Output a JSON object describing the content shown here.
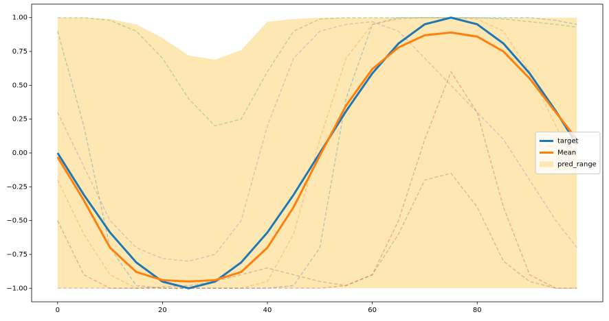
{
  "chart_data": {
    "type": "line",
    "x": [
      0,
      5,
      10,
      15,
      20,
      25,
      30,
      35,
      40,
      45,
      50,
      55,
      60,
      65,
      70,
      75,
      80,
      85,
      90,
      95,
      99
    ],
    "band": {
      "name": "pred_range",
      "color": "#fde7b2",
      "upper": [
        1,
        1,
        0.99,
        0.95,
        0.85,
        0.72,
        0.69,
        0.76,
        0.97,
        0.99,
        1,
        1,
        1,
        1,
        1,
        1,
        1,
        1,
        1,
        1,
        1
      ],
      "lower": [
        -1,
        -1,
        -1,
        -1,
        -1,
        -1,
        -1,
        -1,
        -1,
        -1,
        -1,
        -1,
        -1,
        -1,
        -1,
        -1,
        -1,
        -1,
        -1,
        -1,
        -1
      ]
    },
    "members": [
      {
        "color": "#1f77b4",
        "values": [
          0.9,
          0.2,
          -0.7,
          -0.98,
          -1,
          -1,
          -1,
          -1,
          -1,
          -0.98,
          -0.7,
          0.4,
          0.95,
          1,
          1,
          1,
          1,
          1,
          1,
          0.98,
          0.95
        ]
      },
      {
        "color": "#ff7f0e",
        "values": [
          -0.2,
          -0.6,
          -0.9,
          -1,
          -1,
          -1,
          -1,
          -1,
          -0.95,
          -0.6,
          0.1,
          0.7,
          0.95,
          0.99,
          1,
          1,
          0.99,
          0.9,
          0.6,
          0.2,
          -0.1
        ]
      },
      {
        "color": "#2ca02c",
        "values": [
          1,
          1,
          0.98,
          0.9,
          0.7,
          0.4,
          0.2,
          0.25,
          0.6,
          0.9,
          0.99,
          1,
          1,
          1,
          1,
          1,
          1,
          0.99,
          0.97,
          0.95,
          0.93
        ]
      },
      {
        "color": "#d62728",
        "values": [
          -0.5,
          -0.9,
          -1,
          -1,
          -1,
          -1,
          -1,
          -1,
          -1,
          -1,
          -1,
          -0.98,
          -0.9,
          -0.5,
          0.1,
          0.6,
          0.3,
          -0.4,
          -0.9,
          -1,
          -1
        ]
      },
      {
        "color": "#9467bd",
        "values": [
          0.3,
          -0.1,
          -0.5,
          -0.7,
          -0.78,
          -0.8,
          -0.75,
          -0.5,
          0.2,
          0.7,
          0.9,
          0.95,
          0.97,
          0.9,
          0.7,
          0.5,
          0.3,
          0.1,
          -0.2,
          -0.5,
          -0.7
        ]
      },
      {
        "color": "#8c564b",
        "values": [
          -1,
          -1,
          -1,
          -1,
          -0.99,
          -0.98,
          -0.95,
          -0.9,
          -0.85,
          -0.9,
          -0.95,
          -0.98,
          -0.9,
          -0.6,
          -0.2,
          -0.15,
          -0.4,
          -0.8,
          -0.95,
          -1,
          -1
        ]
      }
    ],
    "series": [
      {
        "name": "target",
        "color": "#1f77b4",
        "values": [
          0,
          -0.309,
          -0.588,
          -0.809,
          -0.951,
          -1,
          -0.951,
          -0.809,
          -0.588,
          -0.309,
          0,
          0.309,
          0.588,
          0.809,
          0.951,
          1,
          0.951,
          0.809,
          0.588,
          0.309,
          0.063
        ]
      },
      {
        "name": "Mean",
        "color": "#ff7f0e",
        "values": [
          -0.03,
          -0.35,
          -0.7,
          -0.88,
          -0.94,
          -0.95,
          -0.94,
          -0.88,
          -0.7,
          -0.4,
          -0.02,
          0.35,
          0.62,
          0.78,
          0.87,
          0.89,
          0.86,
          0.75,
          0.55,
          0.3,
          0.1
        ]
      }
    ],
    "xlim": [
      -4.95,
      103.95
    ],
    "ylim": [
      -1.1,
      1.1
    ],
    "xticks": [
      0,
      20,
      40,
      60,
      80
    ],
    "yticks": [
      {
        "value": -1,
        "label": "−1.00"
      },
      {
        "value": -0.75,
        "label": "−0.75"
      },
      {
        "value": -0.5,
        "label": "−0.50"
      },
      {
        "value": -0.25,
        "label": "−0.25"
      },
      {
        "value": 0,
        "label": "0.00"
      },
      {
        "value": 0.25,
        "label": "0.25"
      },
      {
        "value": 0.5,
        "label": "0.50"
      },
      {
        "value": 0.75,
        "label": "0.75"
      },
      {
        "value": 1,
        "label": "1.00"
      }
    ],
    "legend": "center right"
  }
}
